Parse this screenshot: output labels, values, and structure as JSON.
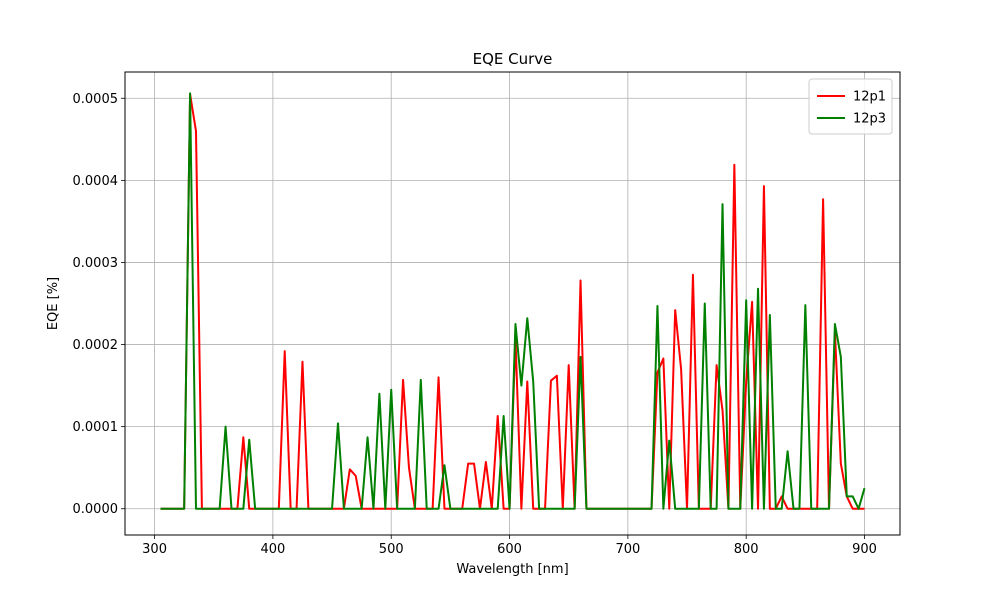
{
  "chart_data": {
    "type": "line",
    "title": "EQE Curve",
    "xlabel": "Wavelength [nm]",
    "ylabel": "EQE [%]",
    "xlim": [
      275,
      930
    ],
    "ylim": [
      -3.2e-05,
      0.000532
    ],
    "x_ticks": [
      300,
      400,
      500,
      600,
      700,
      800,
      900
    ],
    "x_tick_labels": [
      "300",
      "400",
      "500",
      "600",
      "700",
      "800",
      "900"
    ],
    "y_ticks": [
      0,
      0.0001,
      0.0002,
      0.0003,
      0.0004,
      0.0005
    ],
    "y_tick_labels": [
      "0.0000",
      "0.0001",
      "0.0002",
      "0.0003",
      "0.0004",
      "0.0005"
    ],
    "grid": true,
    "legend_position": "top-right",
    "series": [
      {
        "name": "12p1",
        "color": "#ff0000",
        "points": [
          [
            305,
            0
          ],
          [
            310,
            0
          ],
          [
            315,
            0
          ],
          [
            320,
            0
          ],
          [
            325,
            0
          ],
          [
            330,
            0.000505
          ],
          [
            335,
            0.00046
          ],
          [
            340,
            0
          ],
          [
            345,
            0
          ],
          [
            350,
            0
          ],
          [
            355,
            0
          ],
          [
            360,
            0
          ],
          [
            365,
            0
          ],
          [
            370,
            0
          ],
          [
            375,
            8.7e-05
          ],
          [
            380,
            0
          ],
          [
            385,
            0
          ],
          [
            390,
            0
          ],
          [
            395,
            0
          ],
          [
            400,
            0
          ],
          [
            405,
            0
          ],
          [
            410,
            0.000192
          ],
          [
            415,
            0
          ],
          [
            420,
            0
          ],
          [
            425,
            0.000179
          ],
          [
            430,
            0
          ],
          [
            435,
            0
          ],
          [
            440,
            0
          ],
          [
            445,
            0
          ],
          [
            450,
            0
          ],
          [
            455,
            0
          ],
          [
            460,
            0
          ],
          [
            465,
            4.8e-05
          ],
          [
            470,
            4e-05
          ],
          [
            475,
            0
          ],
          [
            480,
            0
          ],
          [
            485,
            0
          ],
          [
            490,
            0
          ],
          [
            495,
            0
          ],
          [
            500,
            0
          ],
          [
            505,
            0
          ],
          [
            510,
            0.000157
          ],
          [
            515,
            5e-05
          ],
          [
            520,
            0
          ],
          [
            525,
            0
          ],
          [
            530,
            0
          ],
          [
            535,
            0
          ],
          [
            540,
            0.00016
          ],
          [
            545,
            0
          ],
          [
            550,
            0
          ],
          [
            555,
            0
          ],
          [
            560,
            0
          ],
          [
            565,
            5.5e-05
          ],
          [
            570,
            5.5e-05
          ],
          [
            575,
            0
          ],
          [
            580,
            5.7e-05
          ],
          [
            585,
            0
          ],
          [
            590,
            0.000113
          ],
          [
            595,
            0
          ],
          [
            600,
            0
          ],
          [
            605,
            0.000207
          ],
          [
            610,
            0
          ],
          [
            615,
            0.000155
          ],
          [
            620,
            0
          ],
          [
            625,
            0
          ],
          [
            630,
            0
          ],
          [
            635,
            0.000156
          ],
          [
            640,
            0.000162
          ],
          [
            645,
            0
          ],
          [
            650,
            0.000175
          ],
          [
            655,
            0
          ],
          [
            660,
            0.000278
          ],
          [
            665,
            0
          ],
          [
            670,
            0
          ],
          [
            675,
            0
          ],
          [
            680,
            0
          ],
          [
            685,
            0
          ],
          [
            690,
            0
          ],
          [
            695,
            0
          ],
          [
            700,
            0
          ],
          [
            705,
            0
          ],
          [
            710,
            0
          ],
          [
            715,
            0
          ],
          [
            720,
            0
          ],
          [
            725,
            0.000166
          ],
          [
            730,
            0.000183
          ],
          [
            735,
            0
          ],
          [
            740,
            0.000242
          ],
          [
            745,
            0.00017
          ],
          [
            750,
            0
          ],
          [
            755,
            0.000285
          ],
          [
            760,
            0
          ],
          [
            765,
            0
          ],
          [
            770,
            0
          ],
          [
            775,
            0.000175
          ],
          [
            780,
            0.00012
          ],
          [
            785,
            0
          ],
          [
            790,
            0.000419
          ],
          [
            795,
            0
          ],
          [
            800,
            0.000155
          ],
          [
            805,
            0.000252
          ],
          [
            810,
            0
          ],
          [
            815,
            0.000393
          ],
          [
            820,
            0
          ],
          [
            825,
            0
          ],
          [
            830,
            1.5e-05
          ],
          [
            835,
            0
          ],
          [
            840,
            0
          ],
          [
            845,
            0
          ],
          [
            850,
            0
          ],
          [
            855,
            0
          ],
          [
            860,
            0
          ],
          [
            865,
            0.000377
          ],
          [
            870,
            0
          ],
          [
            875,
            0.000215
          ],
          [
            880,
            5.5e-05
          ],
          [
            885,
            1.5e-05
          ],
          [
            890,
            0
          ],
          [
            895,
            0
          ],
          [
            900,
            0
          ]
        ]
      },
      {
        "name": "12p3",
        "color": "#008000",
        "points": [
          [
            305,
            0
          ],
          [
            310,
            0
          ],
          [
            315,
            0
          ],
          [
            320,
            0
          ],
          [
            325,
            0
          ],
          [
            330,
            0.000506
          ],
          [
            335,
            0
          ],
          [
            340,
            0
          ],
          [
            345,
            0
          ],
          [
            350,
            0
          ],
          [
            355,
            0
          ],
          [
            360,
            0.0001
          ],
          [
            365,
            0
          ],
          [
            370,
            0
          ],
          [
            375,
            0
          ],
          [
            380,
            8.4e-05
          ],
          [
            385,
            0
          ],
          [
            390,
            0
          ],
          [
            395,
            0
          ],
          [
            400,
            0
          ],
          [
            405,
            0
          ],
          [
            410,
            0
          ],
          [
            415,
            0
          ],
          [
            420,
            0
          ],
          [
            425,
            0
          ],
          [
            430,
            0
          ],
          [
            435,
            0
          ],
          [
            440,
            0
          ],
          [
            445,
            0
          ],
          [
            450,
            0
          ],
          [
            455,
            0.000104
          ],
          [
            460,
            0
          ],
          [
            465,
            0
          ],
          [
            470,
            0
          ],
          [
            475,
            0
          ],
          [
            480,
            8.7e-05
          ],
          [
            485,
            0
          ],
          [
            490,
            0.00014
          ],
          [
            495,
            0
          ],
          [
            500,
            0.000145
          ],
          [
            505,
            0
          ],
          [
            510,
            0
          ],
          [
            515,
            0
          ],
          [
            520,
            0
          ],
          [
            525,
            0.000157
          ],
          [
            530,
            0
          ],
          [
            535,
            0
          ],
          [
            540,
            0
          ],
          [
            545,
            5.3e-05
          ],
          [
            550,
            0
          ],
          [
            555,
            0
          ],
          [
            560,
            0
          ],
          [
            565,
            0
          ],
          [
            570,
            0
          ],
          [
            575,
            0
          ],
          [
            580,
            0
          ],
          [
            585,
            0
          ],
          [
            590,
            0
          ],
          [
            595,
            0.000113
          ],
          [
            600,
            0
          ],
          [
            605,
            0.000225
          ],
          [
            610,
            0.00015
          ],
          [
            615,
            0.000232
          ],
          [
            620,
            0.000155
          ],
          [
            625,
            0
          ],
          [
            630,
            0
          ],
          [
            635,
            0
          ],
          [
            640,
            0
          ],
          [
            645,
            0
          ],
          [
            650,
            0
          ],
          [
            655,
            0
          ],
          [
            660,
            0.000185
          ],
          [
            665,
            0
          ],
          [
            670,
            0
          ],
          [
            675,
            0
          ],
          [
            680,
            0
          ],
          [
            685,
            0
          ],
          [
            690,
            0
          ],
          [
            695,
            0
          ],
          [
            700,
            0
          ],
          [
            705,
            0
          ],
          [
            710,
            0
          ],
          [
            715,
            0
          ],
          [
            720,
            0
          ],
          [
            725,
            0.000247
          ],
          [
            730,
            0
          ],
          [
            735,
            8.3e-05
          ],
          [
            740,
            0
          ],
          [
            745,
            0
          ],
          [
            750,
            0
          ],
          [
            755,
            0
          ],
          [
            760,
            0
          ],
          [
            765,
            0.00025
          ],
          [
            770,
            0
          ],
          [
            775,
            0
          ],
          [
            780,
            0.000371
          ],
          [
            785,
            0
          ],
          [
            790,
            0
          ],
          [
            795,
            0
          ],
          [
            800,
            0.000254
          ],
          [
            805,
            0
          ],
          [
            810,
            0.000268
          ],
          [
            815,
            0
          ],
          [
            820,
            0.000236
          ],
          [
            825,
            0
          ],
          [
            830,
            0
          ],
          [
            835,
            7e-05
          ],
          [
            840,
            0
          ],
          [
            845,
            0
          ],
          [
            850,
            0.000248
          ],
          [
            855,
            0
          ],
          [
            860,
            0
          ],
          [
            865,
            0
          ],
          [
            870,
            0
          ],
          [
            875,
            0.000225
          ],
          [
            880,
            0.000185
          ],
          [
            885,
            1.5e-05
          ],
          [
            890,
            1.5e-05
          ],
          [
            895,
            0
          ],
          [
            900,
            2.5e-05
          ]
        ]
      }
    ]
  }
}
